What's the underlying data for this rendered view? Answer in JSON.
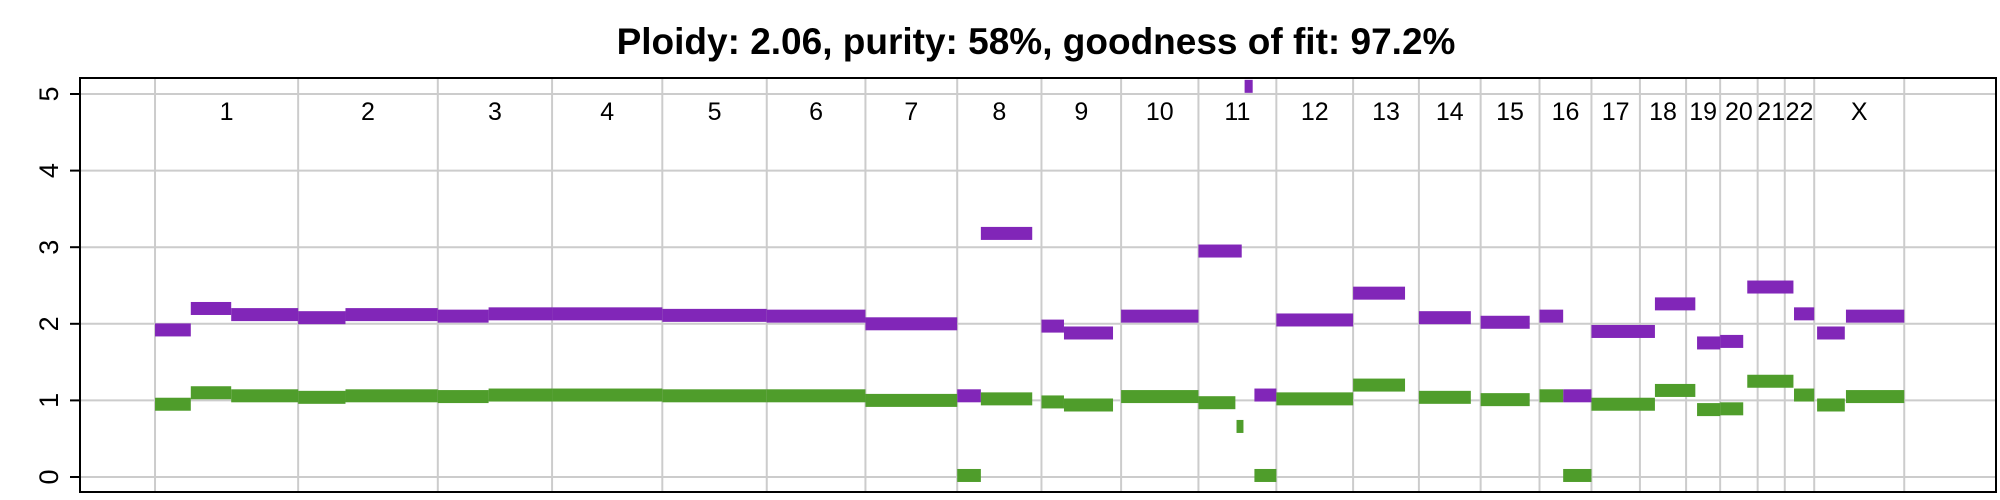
{
  "chart_data": {
    "type": "segments",
    "title": "Ploidy: 2.06, purity: 58%, goodness of fit: 97.2%",
    "ylim": [
      0,
      5
    ],
    "yticks": [
      0,
      1,
      2,
      3,
      4,
      5
    ],
    "grid": true,
    "chromosomes": [
      {
        "name": "1",
        "start": 0,
        "end": 248
      },
      {
        "name": "2",
        "start": 248,
        "end": 490
      },
      {
        "name": "3",
        "start": 490,
        "end": 688
      },
      {
        "name": "4",
        "start": 688,
        "end": 879
      },
      {
        "name": "5",
        "start": 879,
        "end": 1060
      },
      {
        "name": "6",
        "start": 1060,
        "end": 1231
      },
      {
        "name": "7",
        "start": 1231,
        "end": 1390
      },
      {
        "name": "8",
        "start": 1390,
        "end": 1536
      },
      {
        "name": "9",
        "start": 1536,
        "end": 1674
      },
      {
        "name": "10",
        "start": 1674,
        "end": 1808
      },
      {
        "name": "11",
        "start": 1808,
        "end": 1943
      },
      {
        "name": "12",
        "start": 1943,
        "end": 2076
      },
      {
        "name": "13",
        "start": 2076,
        "end": 2190
      },
      {
        "name": "14",
        "start": 2190,
        "end": 2297
      },
      {
        "name": "15",
        "start": 2297,
        "end": 2399
      },
      {
        "name": "16",
        "start": 2399,
        "end": 2489
      },
      {
        "name": "17",
        "start": 2489,
        "end": 2573
      },
      {
        "name": "18",
        "start": 2573,
        "end": 2653
      },
      {
        "name": "19",
        "start": 2653,
        "end": 2712
      },
      {
        "name": "20",
        "start": 2712,
        "end": 2777
      },
      {
        "name": "21",
        "start": 2777,
        "end": 2824
      },
      {
        "name": "22",
        "start": 2824,
        "end": 2875
      },
      {
        "name": "X",
        "start": 2875,
        "end": 3031
      }
    ],
    "genome_range": [
      -130,
      3190
    ],
    "series": [
      {
        "color": "#8126B8",
        "segments": [
          {
            "start": 0,
            "end": 62,
            "y": 1.92
          },
          {
            "start": 62,
            "end": 132,
            "y": 2.2
          },
          {
            "start": 132,
            "end": 248,
            "y": 2.12
          },
          {
            "start": 248,
            "end": 330,
            "y": 2.08
          },
          {
            "start": 330,
            "end": 490,
            "y": 2.12
          },
          {
            "start": 490,
            "end": 578,
            "y": 2.1
          },
          {
            "start": 578,
            "end": 688,
            "y": 2.13
          },
          {
            "start": 688,
            "end": 879,
            "y": 2.13
          },
          {
            "start": 879,
            "end": 1060,
            "y": 2.11
          },
          {
            "start": 1060,
            "end": 1231,
            "y": 2.1
          },
          {
            "start": 1231,
            "end": 1390,
            "y": 2.0
          },
          {
            "start": 1390,
            "end": 1431,
            "y": 1.06
          },
          {
            "start": 1431,
            "end": 1520,
            "y": 3.18
          },
          {
            "start": 1536,
            "end": 1575,
            "y": 1.97
          },
          {
            "start": 1575,
            "end": 1660,
            "y": 1.88
          },
          {
            "start": 1674,
            "end": 1808,
            "y": 2.1
          },
          {
            "start": 1808,
            "end": 1883,
            "y": 2.95
          },
          {
            "start": 1888,
            "end": 1902,
            "y": 5.1
          },
          {
            "start": 1905,
            "end": 1943,
            "y": 1.07
          },
          {
            "start": 1943,
            "end": 2076,
            "y": 2.05
          },
          {
            "start": 2076,
            "end": 2166,
            "y": 2.4
          },
          {
            "start": 2190,
            "end": 2280,
            "y": 2.08
          },
          {
            "start": 2297,
            "end": 2382,
            "y": 2.02
          },
          {
            "start": 2399,
            "end": 2440,
            "y": 2.1
          },
          {
            "start": 2440,
            "end": 2489,
            "y": 1.06
          },
          {
            "start": 2489,
            "end": 2599,
            "y": 1.9
          },
          {
            "start": 2599,
            "end": 2669,
            "y": 2.26
          },
          {
            "start": 2672,
            "end": 2712,
            "y": 1.75
          },
          {
            "start": 2712,
            "end": 2752,
            "y": 1.77
          },
          {
            "start": 2759,
            "end": 2839,
            "y": 2.48
          },
          {
            "start": 2840,
            "end": 2875,
            "y": 2.13
          },
          {
            "start": 2880,
            "end": 2928,
            "y": 1.88
          },
          {
            "start": 2930,
            "end": 3031,
            "y": 2.1
          }
        ]
      },
      {
        "color": "#4F9D2B",
        "segments": [
          {
            "start": 0,
            "end": 62,
            "y": 0.95
          },
          {
            "start": 62,
            "end": 132,
            "y": 1.1
          },
          {
            "start": 132,
            "end": 248,
            "y": 1.06
          },
          {
            "start": 248,
            "end": 330,
            "y": 1.04
          },
          {
            "start": 330,
            "end": 490,
            "y": 1.06
          },
          {
            "start": 490,
            "end": 578,
            "y": 1.05
          },
          {
            "start": 578,
            "end": 688,
            "y": 1.07
          },
          {
            "start": 688,
            "end": 879,
            "y": 1.07
          },
          {
            "start": 879,
            "end": 1060,
            "y": 1.06
          },
          {
            "start": 1060,
            "end": 1231,
            "y": 1.06
          },
          {
            "start": 1231,
            "end": 1390,
            "y": 1.0
          },
          {
            "start": 1390,
            "end": 1431,
            "y": 0.02
          },
          {
            "start": 1431,
            "end": 1520,
            "y": 1.02
          },
          {
            "start": 1536,
            "end": 1575,
            "y": 0.98
          },
          {
            "start": 1575,
            "end": 1660,
            "y": 0.94
          },
          {
            "start": 1674,
            "end": 1808,
            "y": 1.05
          },
          {
            "start": 1808,
            "end": 1872,
            "y": 0.97
          },
          {
            "start": 1874,
            "end": 1886,
            "y": 0.66
          },
          {
            "start": 1905,
            "end": 1943,
            "y": 0.02
          },
          {
            "start": 1943,
            "end": 2076,
            "y": 1.02
          },
          {
            "start": 2076,
            "end": 2166,
            "y": 1.2
          },
          {
            "start": 2190,
            "end": 2280,
            "y": 1.04
          },
          {
            "start": 2297,
            "end": 2382,
            "y": 1.01
          },
          {
            "start": 2399,
            "end": 2440,
            "y": 1.06
          },
          {
            "start": 2440,
            "end": 2489,
            "y": 0.02
          },
          {
            "start": 2489,
            "end": 2599,
            "y": 0.95
          },
          {
            "start": 2599,
            "end": 2669,
            "y": 1.13
          },
          {
            "start": 2672,
            "end": 2712,
            "y": 0.88
          },
          {
            "start": 2712,
            "end": 2752,
            "y": 0.89
          },
          {
            "start": 2759,
            "end": 2839,
            "y": 1.25
          },
          {
            "start": 2840,
            "end": 2875,
            "y": 1.07
          },
          {
            "start": 2880,
            "end": 2928,
            "y": 0.94
          },
          {
            "start": 2930,
            "end": 3031,
            "y": 1.05
          }
        ]
      }
    ]
  }
}
